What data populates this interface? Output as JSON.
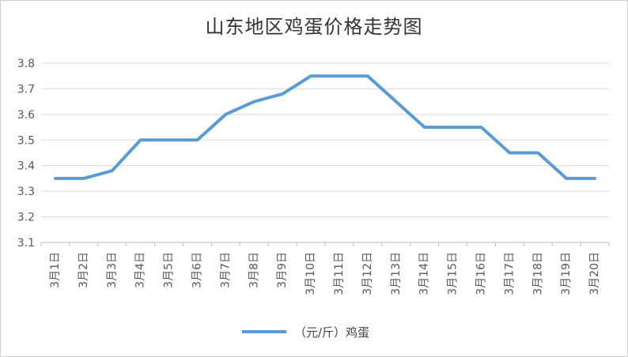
{
  "chart_data": {
    "type": "line",
    "title": "山东地区鸡蛋价格走势图",
    "categories": [
      "3月1日",
      "3月2日",
      "3月3日",
      "3月4日",
      "3月5日",
      "3月6日",
      "3月7日",
      "3月8日",
      "3月9日",
      "3月10日",
      "3月11日",
      "3月12日",
      "3月13日",
      "3月14日",
      "3月15日",
      "3月16日",
      "3月17日",
      "3月18日",
      "3月19日",
      "3月20日"
    ],
    "series": [
      {
        "name": "（元/斤）鸡蛋",
        "values": [
          3.35,
          3.35,
          3.38,
          3.5,
          3.5,
          3.5,
          3.6,
          3.65,
          3.68,
          3.75,
          3.75,
          3.75,
          3.65,
          3.55,
          3.55,
          3.55,
          3.45,
          3.45,
          3.35,
          3.35
        ]
      }
    ],
    "ylim": [
      3.1,
      3.8
    ],
    "yticks": [
      "3.1",
      "3.2",
      "3.3",
      "3.4",
      "3.5",
      "3.6",
      "3.7",
      "3.8"
    ],
    "xlabel": "",
    "ylabel": "",
    "grid": true,
    "legend": "bottom",
    "line_color": "#5b9bd5"
  }
}
